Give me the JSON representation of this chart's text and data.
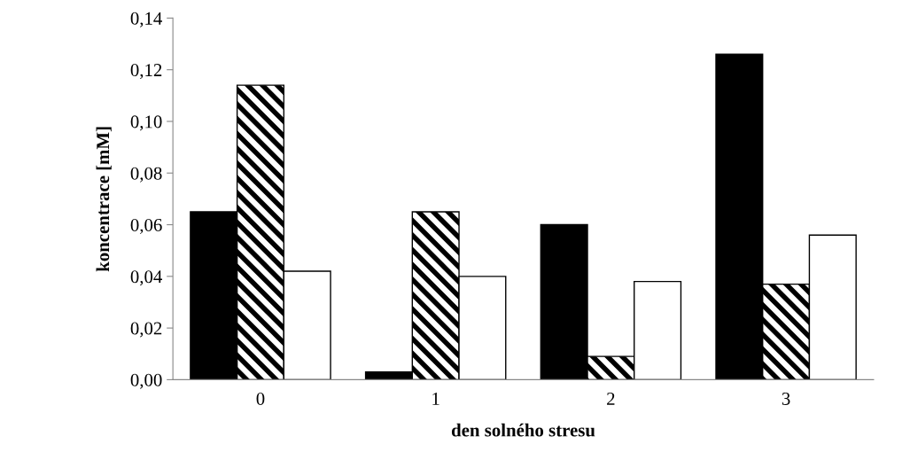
{
  "chart_data": {
    "type": "bar",
    "xlabel": "den solného stresu",
    "ylabel": "koncentrace [mM]",
    "categories": [
      "0",
      "1",
      "2",
      "3"
    ],
    "series": [
      {
        "color": "#000000",
        "values": [
          0.065,
          0.003,
          0.06,
          0.126
        ]
      },
      {
        "color": "#000000",
        "values": [
          0.114,
          0.065,
          0.009,
          0.037
        ]
      },
      {
        "color": "#ffffff",
        "values": [
          0.042,
          0.04,
          0.038,
          0.056
        ]
      }
    ],
    "ylim": [
      0,
      0.14
    ],
    "yticks": [
      {
        "value": 0,
        "label": "0,00"
      },
      {
        "value": 0.02,
        "label": "0,02"
      },
      {
        "value": 0.04,
        "label": "0,04"
      },
      {
        "value": 0.06,
        "label": "0,06"
      },
      {
        "value": 0.08,
        "label": "0,08"
      },
      {
        "value": 0.1,
        "label": "0,10"
      },
      {
        "value": 0.12,
        "label": "0,12"
      },
      {
        "value": 0.14,
        "label": "0,14"
      }
    ],
    "grid": false
  }
}
